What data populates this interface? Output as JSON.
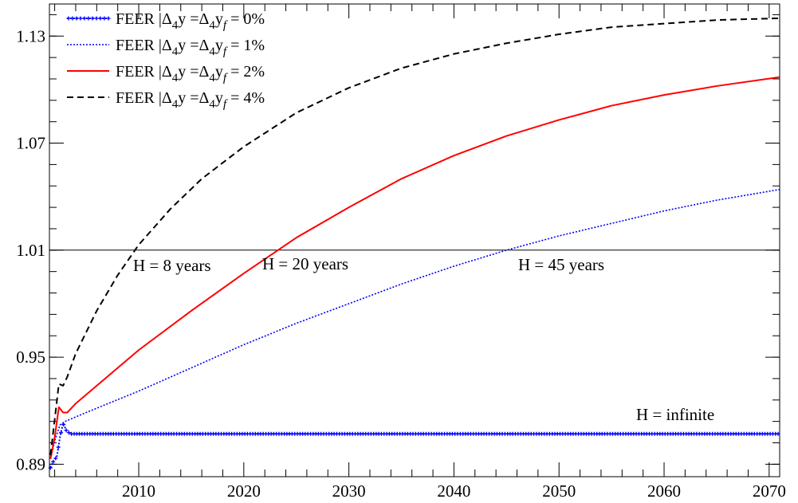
{
  "chart_data": {
    "type": "line",
    "title": "",
    "xlabel": "",
    "ylabel": "",
    "xlim": [
      2001.5,
      2071
    ],
    "ylim": [
      0.883,
      1.148
    ],
    "x_ticks": [
      2010,
      2020,
      2030,
      2040,
      2050,
      2060,
      2070
    ],
    "x_tick_labels": [
      "2010",
      "2020",
      "2030",
      "2040",
      "2050",
      "2060",
      "2070"
    ],
    "y_ticks": [
      0.89,
      0.95,
      1.01,
      1.07,
      1.13
    ],
    "y_tick_labels": [
      "0.89",
      "0.95",
      "1.01",
      "1.07",
      "1.13"
    ],
    "grid": false,
    "legend_position": "top-left",
    "series": [
      {
        "name": "FEER |Δ₄y =Δ₄y_f = 0%",
        "legend_main": "FEER |Δ",
        "legend_eq": "y =Δ",
        "legend_end": "= 0%",
        "color": "#0000ff",
        "style": "dotted-markers",
        "x": [
          2001.6,
          2001.9,
          2002.2,
          2002.5,
          2002.8,
          2003.1,
          2003.5,
          2004,
          2005,
          2010,
          2020,
          2030,
          2040,
          2050,
          2060,
          2071
        ],
        "y": [
          0.888,
          0.892,
          0.894,
          0.905,
          0.913,
          0.909,
          0.907,
          0.907,
          0.907,
          0.907,
          0.907,
          0.907,
          0.907,
          0.907,
          0.907,
          0.907
        ]
      },
      {
        "name": "FEER |Δ₄y =Δ₄y_f = 1%",
        "legend_main": "FEER |Δ",
        "legend_eq": "y =Δ",
        "legend_end": "= 1%",
        "color": "#0000ff",
        "style": "dotted",
        "x": [
          2001.6,
          2002,
          2002.5,
          2003,
          2005,
          2010,
          2015,
          2020,
          2025,
          2030,
          2035,
          2040,
          2045,
          2050,
          2055,
          2060,
          2065,
          2071
        ],
        "y": [
          0.893,
          0.903,
          0.912,
          0.914,
          0.919,
          0.931,
          0.944,
          0.957,
          0.969,
          0.98,
          0.991,
          1.001,
          1.01,
          1.018,
          1.025,
          1.032,
          1.038,
          1.044
        ]
      },
      {
        "name": "FEER |Δ₄y =Δ₄y_f = 2%",
        "legend_main": "FEER |Δ",
        "legend_eq": "y =Δ",
        "legend_end": "= 2%",
        "color": "#ff0000",
        "style": "solid",
        "x": [
          2001.6,
          2002,
          2002.4,
          2002.8,
          2003.2,
          2004,
          2006,
          2010,
          2015,
          2020,
          2025,
          2030,
          2035,
          2040,
          2045,
          2050,
          2055,
          2060,
          2065,
          2071
        ],
        "y": [
          0.893,
          0.905,
          0.922,
          0.919,
          0.919,
          0.924,
          0.934,
          0.954,
          0.976,
          0.997,
          1.017,
          1.034,
          1.05,
          1.063,
          1.074,
          1.083,
          1.091,
          1.097,
          1.102,
          1.107
        ]
      },
      {
        "name": "FEER |Δ₄y =Δ₄y_f = 4%",
        "legend_main": "FEER |Δ",
        "legend_eq": "y =Δ",
        "legend_end": "= 4%",
        "color": "#000000",
        "style": "dashed",
        "x": [
          2001.6,
          2002,
          2002.4,
          2002.8,
          2003.2,
          2004,
          2006,
          2008,
          2010,
          2013,
          2016,
          2020,
          2025,
          2030,
          2035,
          2040,
          2045,
          2050,
          2055,
          2060,
          2065,
          2071
        ],
        "y": [
          0.895,
          0.915,
          0.935,
          0.934,
          0.939,
          0.952,
          0.976,
          0.996,
          1.013,
          1.033,
          1.05,
          1.068,
          1.087,
          1.101,
          1.112,
          1.12,
          1.126,
          1.131,
          1.135,
          1.137,
          1.139,
          1.14
        ]
      }
    ],
    "reference_line": {
      "y": 1.01,
      "color": "#000000"
    },
    "annotations": [
      "H = 8 years",
      "H = 20 years",
      "H = 45 years",
      "H = infinite"
    ]
  }
}
